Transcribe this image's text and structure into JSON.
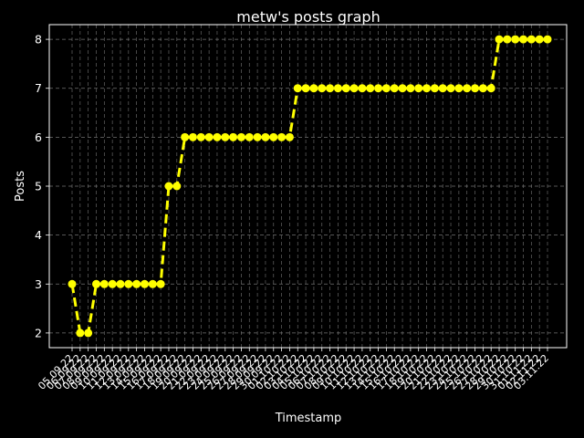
{
  "colors": {
    "background": "#000000",
    "foreground": "#ffffff",
    "series": "#ffff00",
    "grid": "#808080"
  },
  "chart_data": {
    "type": "line",
    "title": "metw's posts graph",
    "xlabel": "Timestamp",
    "ylabel": "Posts",
    "ylim": [
      1.7,
      8.3
    ],
    "yticks": [
      2,
      3,
      4,
      5,
      6,
      7,
      8
    ],
    "grid": true,
    "line_style": "dashed",
    "marker": "circle",
    "x_tick_labels_note": "dense overlapping rotated date labels, unreadable",
    "x": [
      "05.09.22",
      "06.09.22",
      "07.09.22",
      "08.09.22",
      "09.09.22",
      "10.09.22",
      "11.09.22",
      "12.09.22",
      "13.09.22",
      "14.09.22",
      "15.09.22",
      "16.09.22",
      "17.09.22",
      "18.09.22",
      "19.09.22",
      "20.09.22",
      "21.09.22",
      "22.09.22",
      "23.09.22",
      "24.09.22",
      "25.09.22",
      "26.09.22",
      "27.09.22",
      "28.09.22",
      "29.09.22",
      "30.09.22",
      "01.10.22",
      "02.10.22",
      "03.10.22",
      "04.10.22",
      "05.10.22",
      "06.10.22",
      "07.10.22",
      "08.10.22",
      "09.10.22",
      "10.10.22",
      "11.10.22",
      "12.10.22",
      "13.10.22",
      "14.10.22",
      "15.10.22",
      "16.10.22",
      "17.10.22",
      "18.10.22",
      "19.10.22",
      "20.10.22",
      "21.10.22",
      "22.10.22",
      "23.10.22",
      "24.10.22",
      "25.10.22",
      "26.10.22",
      "27.10.22",
      "28.10.22",
      "29.10.22",
      "30.10.22",
      "31.10.22",
      "01.11.22",
      "02.11.22",
      "03.11.22"
    ],
    "series": [
      {
        "values": [
          3,
          2,
          2,
          3,
          3,
          3,
          3,
          3,
          3,
          3,
          3,
          3,
          5,
          5,
          6,
          6,
          6,
          6,
          6,
          6,
          6,
          6,
          6,
          6,
          6,
          6,
          6,
          6,
          7,
          7,
          7,
          7,
          7,
          7,
          7,
          7,
          7,
          7,
          7,
          7,
          7,
          7,
          7,
          7,
          7,
          7,
          7,
          7,
          7,
          7,
          7,
          7,
          7,
          8,
          8,
          8,
          8,
          8,
          8,
          8
        ]
      }
    ]
  }
}
